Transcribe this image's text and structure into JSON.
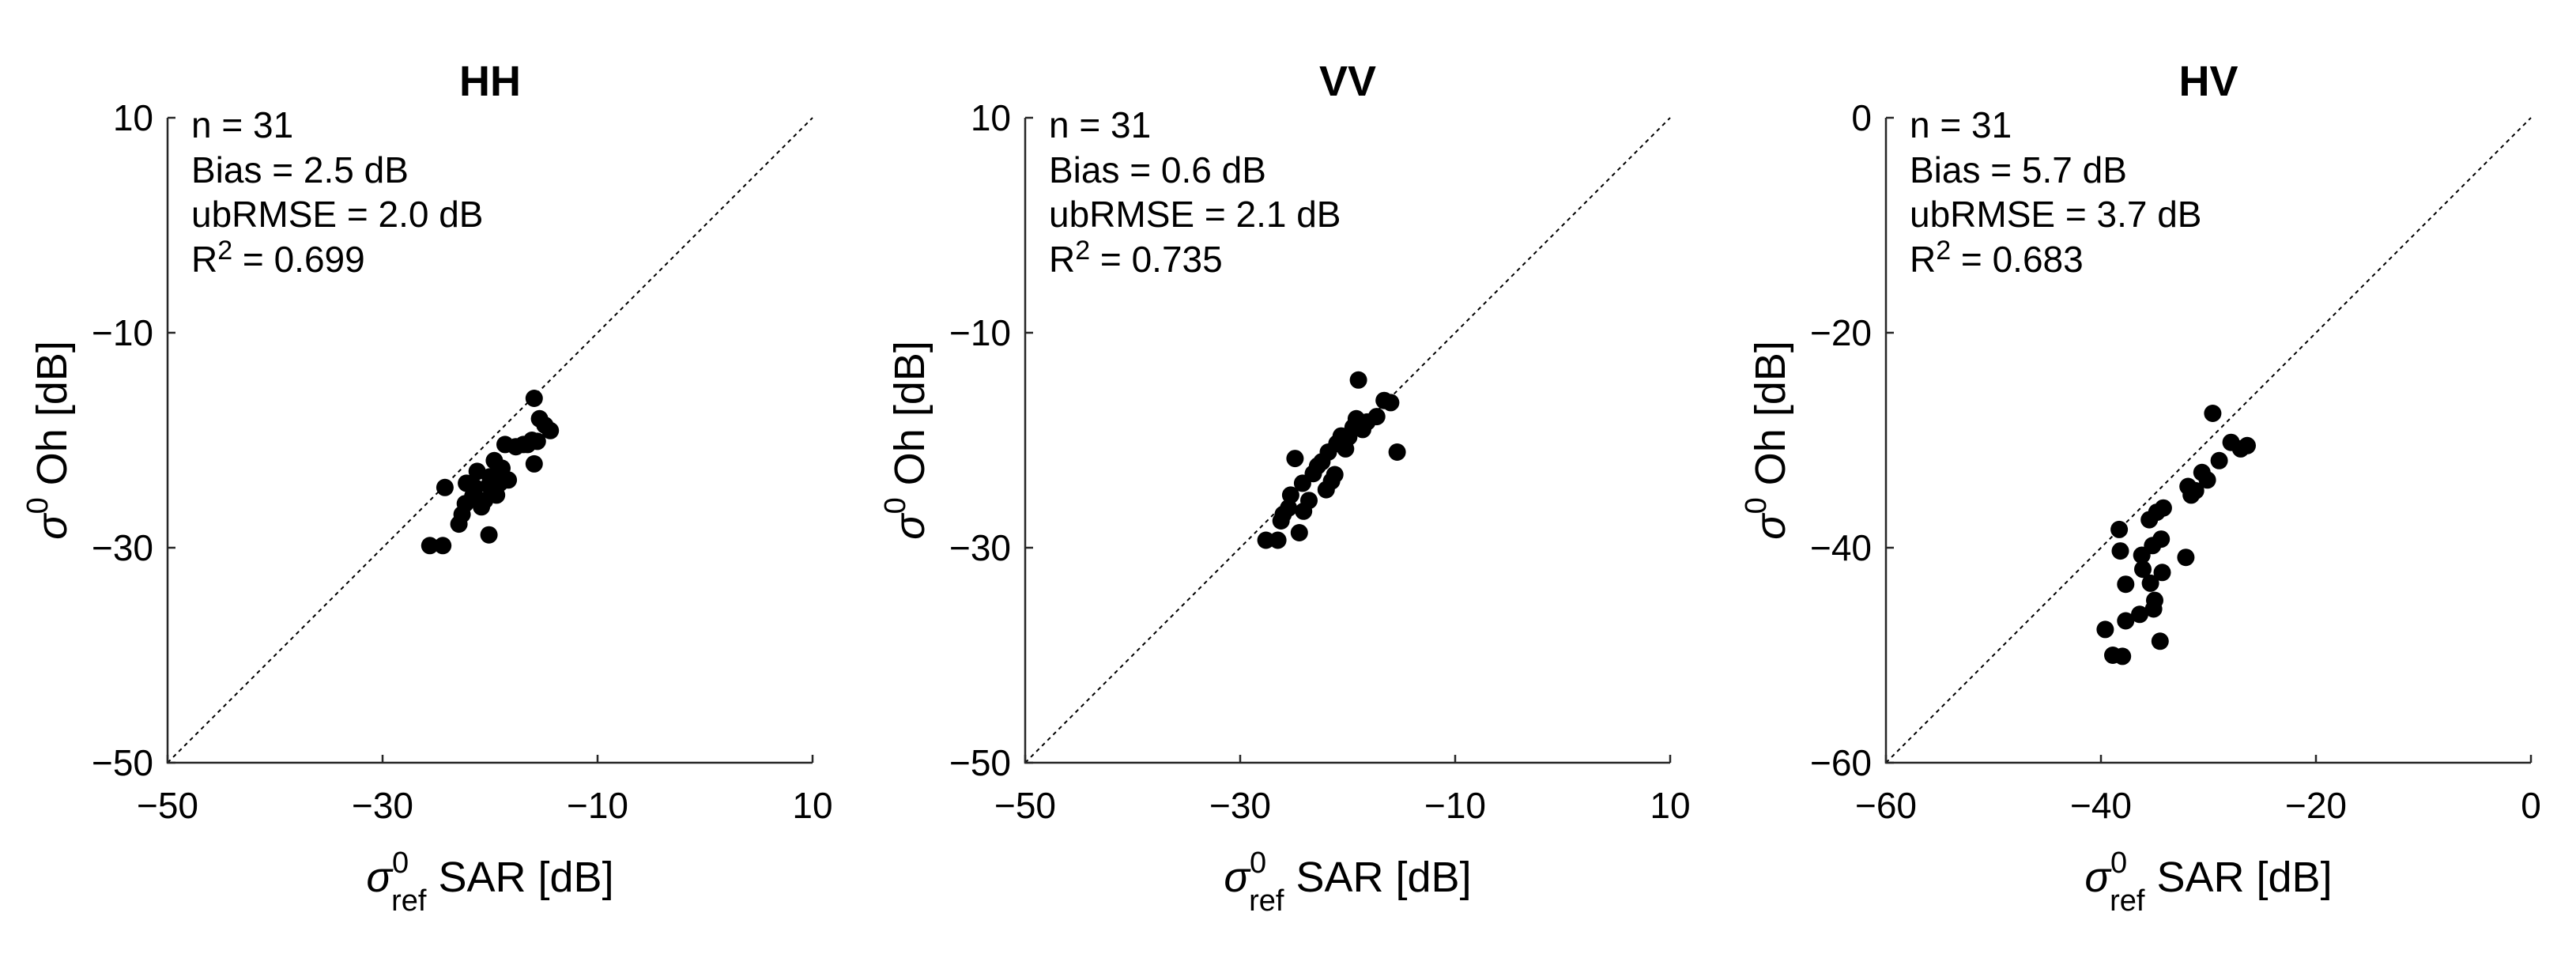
{
  "chart_data": [
    {
      "type": "scatter",
      "title": "HH",
      "xlabel": {
        "symbol": "σ",
        "sup": "0",
        "sub": "ref",
        "text": " SAR [dB]"
      },
      "ylabel": {
        "symbol": "σ",
        "sup": "0",
        "text": " Oh [dB]"
      },
      "xlim": [
        -50,
        10
      ],
      "ylim": [
        -50,
        10
      ],
      "xticks": [
        -50,
        -30,
        -10,
        10
      ],
      "xtick_labels": [
        "−50",
        "−30",
        "−10",
        "10"
      ],
      "yticks": [
        -50,
        -30,
        -10,
        10
      ],
      "ytick_labels": [
        "−50",
        "−30",
        "−10",
        "10"
      ],
      "stats": {
        "n": "n = 31",
        "bias": "Bias = 2.5 dB",
        "ubrmse": "ubRMSE = 2.0 dB",
        "r2_prefix": "R",
        "r2_sup": "2",
        "r2_value": " = 0.699"
      },
      "reference_line": "1:1",
      "points": [
        [
          -25.6,
          -29.8
        ],
        [
          -24.4,
          -29.8
        ],
        [
          -24.2,
          -24.4
        ],
        [
          -22.9,
          -27.8
        ],
        [
          -22.6,
          -26.9
        ],
        [
          -22.3,
          -25.9
        ],
        [
          -22.2,
          -24.0
        ],
        [
          -21.6,
          -25.2
        ],
        [
          -21.4,
          -24.4
        ],
        [
          -21.2,
          -22.9
        ],
        [
          -20.8,
          -26.2
        ],
        [
          -20.5,
          -25.6
        ],
        [
          -20.1,
          -24.2
        ],
        [
          -20.1,
          -28.8
        ],
        [
          -20.0,
          -23.4
        ],
        [
          -19.6,
          -21.9
        ],
        [
          -19.4,
          -25.1
        ],
        [
          -19.1,
          -24.0
        ],
        [
          -18.9,
          -22.6
        ],
        [
          -18.6,
          -20.4
        ],
        [
          -18.3,
          -23.7
        ],
        [
          -17.6,
          -20.6
        ],
        [
          -16.9,
          -20.4
        ],
        [
          -16.5,
          -20.4
        ],
        [
          -16.1,
          -20.0
        ],
        [
          -15.9,
          -16.1
        ],
        [
          -15.9,
          -22.2
        ],
        [
          -15.6,
          -20.1
        ],
        [
          -15.4,
          -18.0
        ],
        [
          -14.9,
          -18.6
        ],
        [
          -14.4,
          -19.1
        ]
      ]
    },
    {
      "type": "scatter",
      "title": "VV",
      "xlabel": {
        "symbol": "σ",
        "sup": "0",
        "sub": "ref",
        "text": " SAR [dB]"
      },
      "ylabel": {
        "symbol": "σ",
        "sup": "0",
        "text": " Oh [dB]"
      },
      "xlim": [
        -50,
        10
      ],
      "ylim": [
        -50,
        10
      ],
      "xticks": [
        -50,
        -30,
        -10,
        10
      ],
      "xtick_labels": [
        "−50",
        "−30",
        "−10",
        "10"
      ],
      "yticks": [
        -50,
        -30,
        -10,
        10
      ],
      "ytick_labels": [
        "−50",
        "−30",
        "−10",
        "10"
      ],
      "stats": {
        "n": "n = 31",
        "bias": "Bias = 0.6 dB",
        "ubrmse": "ubRMSE = 2.1 dB",
        "r2_prefix": "R",
        "r2_sup": "2",
        "r2_value": " = 0.735"
      },
      "reference_line": "1:1",
      "points": [
        [
          -27.6,
          -29.3
        ],
        [
          -26.5,
          -29.3
        ],
        [
          -26.2,
          -27.5
        ],
        [
          -26.0,
          -26.9
        ],
        [
          -25.5,
          -26.3
        ],
        [
          -25.3,
          -25.1
        ],
        [
          -24.9,
          -21.7
        ],
        [
          -24.5,
          -28.6
        ],
        [
          -24.2,
          -24.0
        ],
        [
          -24.1,
          -26.6
        ],
        [
          -23.6,
          -25.6
        ],
        [
          -23.2,
          -23.1
        ],
        [
          -22.8,
          -22.4
        ],
        [
          -22.4,
          -22.0
        ],
        [
          -22.0,
          -24.6
        ],
        [
          -21.8,
          -21.1
        ],
        [
          -21.5,
          -23.8
        ],
        [
          -21.2,
          -23.2
        ],
        [
          -21.0,
          -20.3
        ],
        [
          -20.6,
          -19.6
        ],
        [
          -20.2,
          -20.8
        ],
        [
          -19.9,
          -19.7
        ],
        [
          -19.5,
          -18.8
        ],
        [
          -19.2,
          -18.0
        ],
        [
          -19.0,
          -14.4
        ],
        [
          -18.6,
          -19.0
        ],
        [
          -18.2,
          -18.3
        ],
        [
          -17.3,
          -17.8
        ],
        [
          -16.6,
          -16.3
        ],
        [
          -16.0,
          -16.5
        ],
        [
          -15.4,
          -21.1
        ]
      ]
    },
    {
      "type": "scatter",
      "title": "HV",
      "xlabel": {
        "symbol": "σ",
        "sup": "0",
        "sub": "ref",
        "text": " SAR [dB]"
      },
      "ylabel": {
        "symbol": "σ",
        "sup": "0",
        "text": " Oh [dB]"
      },
      "xlim": [
        -60,
        0
      ],
      "ylim": [
        -60,
        0
      ],
      "xticks": [
        -60,
        -40,
        -20,
        0
      ],
      "xtick_labels": [
        "−60",
        "−40",
        "−20",
        "0"
      ],
      "yticks": [
        -60,
        -40,
        -20,
        0
      ],
      "ytick_labels": [
        "−60",
        "−40",
        "−20",
        "0"
      ],
      "stats": {
        "n": "n = 31",
        "bias": "Bias = 5.7 dB",
        "ubrmse": "ubRMSE = 3.7 dB",
        "r2_prefix": "R",
        "r2_sup": "2",
        "r2_value": " = 0.683"
      },
      "reference_line": "1:1",
      "points": [
        [
          -39.6,
          -47.6
        ],
        [
          -38.9,
          -50.0
        ],
        [
          -38.3,
          -38.3
        ],
        [
          -38.2,
          -40.3
        ],
        [
          -38.0,
          -50.1
        ],
        [
          -37.7,
          -46.8
        ],
        [
          -37.7,
          -43.4
        ],
        [
          -36.4,
          -46.2
        ],
        [
          -36.2,
          -40.7
        ],
        [
          -36.1,
          -42.0
        ],
        [
          -35.5,
          -37.4
        ],
        [
          -35.4,
          -43.3
        ],
        [
          -35.2,
          -39.8
        ],
        [
          -35.1,
          -45.7
        ],
        [
          -35.0,
          -44.9
        ],
        [
          -34.8,
          -36.7
        ],
        [
          -34.5,
          -48.7
        ],
        [
          -34.4,
          -39.2
        ],
        [
          -34.3,
          -42.3
        ],
        [
          -34.2,
          -36.3
        ],
        [
          -32.1,
          -40.9
        ],
        [
          -31.9,
          -34.3
        ],
        [
          -31.6,
          -35.1
        ],
        [
          -31.2,
          -34.7
        ],
        [
          -30.6,
          -33.0
        ],
        [
          -30.1,
          -33.7
        ],
        [
          -29.6,
          -27.5
        ],
        [
          -29.0,
          -31.9
        ],
        [
          -27.9,
          -30.2
        ],
        [
          -26.4,
          -30.5
        ],
        [
          -27.0,
          -30.8
        ]
      ]
    }
  ]
}
